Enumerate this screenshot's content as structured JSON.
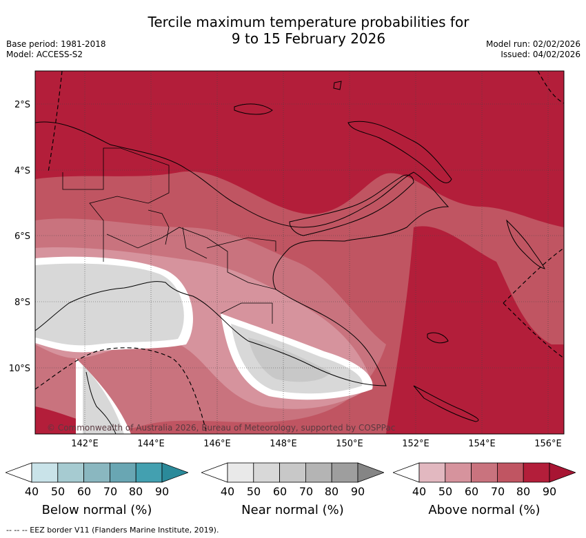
{
  "title_line1": "Tercile maximum temperature probabilities for",
  "title_line2": "9 to 15 February 2026",
  "base_period": "Base period: 1981-2018",
  "model": "Model: ACCESS-S2",
  "model_run": "Model run: 02/02/2026",
  "issued": "Issued: 04/02/2026",
  "copyright": "© Commonwealth of Australia 2026, Bureau of Meteorology, supported by COSPPac",
  "lat_labels": [
    "2°S",
    "4°S",
    "6°S",
    "8°S",
    "10°S"
  ],
  "lon_labels": [
    "142°E",
    "144°E",
    "146°E",
    "148°E",
    "150°E",
    "152°E",
    "154°E",
    "156°E"
  ],
  "legends": [
    {
      "label": "Below normal (%)",
      "ticks": [
        "40",
        "50",
        "60",
        "70",
        "80",
        "90"
      ],
      "colors": [
        "#ffffff",
        "#c9e3e9",
        "#a6cbd1",
        "#8ab7c0",
        "#69a6b3",
        "#43a0b0",
        "#2b8a9a"
      ]
    },
    {
      "label": "Near normal (%)",
      "ticks": [
        "40",
        "50",
        "60",
        "70",
        "80",
        "90"
      ],
      "colors": [
        "#ffffff",
        "#e9e9e9",
        "#d8d8d8",
        "#c8c8c8",
        "#b4b4b4",
        "#9e9e9e",
        "#858585"
      ]
    },
    {
      "label": "Above normal (%)",
      "ticks": [
        "40",
        "50",
        "60",
        "70",
        "80",
        "90"
      ],
      "colors": [
        "#ffffff",
        "#e2b8c0",
        "#d6939d",
        "#c9737e",
        "#c05562",
        "#b31e3a",
        "#a81533"
      ]
    }
  ],
  "eez_note": "--  --  -- EEZ border V11 (Flanders Marine Institute, 2019).",
  "colors": {
    "above_80": "#b31e3a",
    "above_70": "#c05562",
    "above_60": "#c9737e",
    "above_50": "#d6939d",
    "near_50": "#d8d8d8",
    "near_60": "#c8c8c8"
  }
}
